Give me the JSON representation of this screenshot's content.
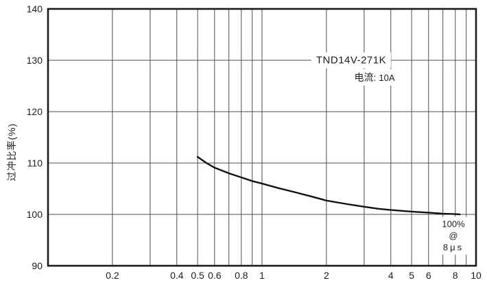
{
  "chart_data": {
    "type": "line",
    "title": "",
    "xlabel": "",
    "ylabel": "过冲比率(%)",
    "x_scale": "log",
    "xlim": [
      0.1,
      10
    ],
    "ylim": [
      90,
      140
    ],
    "grid": true,
    "x_gridlines": [
      0.2,
      0.3,
      0.4,
      0.5,
      0.6,
      0.7,
      0.8,
      0.9,
      1,
      2,
      3,
      4,
      5,
      6,
      7,
      8,
      9
    ],
    "y_gridlines": [
      100,
      110,
      120,
      130
    ],
    "x_ticks": [
      {
        "v": 0.2,
        "label": "0.2"
      },
      {
        "v": 0.4,
        "label": "0.4"
      },
      {
        "v": 0.5,
        "label": "0.5"
      },
      {
        "v": 0.6,
        "label": "0.6"
      },
      {
        "v": 0.8,
        "label": "0.8"
      },
      {
        "v": 1,
        "label": "1"
      },
      {
        "v": 2,
        "label": "2"
      },
      {
        "v": 4,
        "label": "4"
      },
      {
        "v": 5,
        "label": "5"
      },
      {
        "v": 6,
        "label": "6"
      },
      {
        "v": 8,
        "label": "8"
      },
      {
        "v": 10,
        "label": "10"
      }
    ],
    "y_ticks": [
      {
        "v": 90,
        "label": "90"
      },
      {
        "v": 100,
        "label": "100"
      },
      {
        "v": 110,
        "label": "110"
      },
      {
        "v": 120,
        "label": "120"
      },
      {
        "v": 130,
        "label": "130"
      },
      {
        "v": 140,
        "label": "140"
      }
    ],
    "series": [
      {
        "name": "TND14V-271K 过冲比率",
        "points": [
          [
            0.5,
            111.2
          ],
          [
            0.55,
            110.0
          ],
          [
            0.6,
            109.1
          ],
          [
            0.7,
            108.0
          ],
          [
            0.8,
            107.2
          ],
          [
            0.9,
            106.5
          ],
          [
            1.0,
            106.0
          ],
          [
            1.2,
            105.1
          ],
          [
            1.4,
            104.4
          ],
          [
            1.7,
            103.5
          ],
          [
            2.0,
            102.7
          ],
          [
            2.5,
            102.0
          ],
          [
            3.0,
            101.5
          ],
          [
            3.5,
            101.1
          ],
          [
            4.0,
            100.85
          ],
          [
            5.0,
            100.55
          ],
          [
            6.0,
            100.35
          ],
          [
            7.0,
            100.15
          ],
          [
            8.0,
            100.05
          ],
          [
            8.4,
            100.0
          ]
        ]
      }
    ],
    "annotations": {
      "model": "TND14V-271K",
      "current_label": "电流:",
      "current_value": "10A",
      "note": [
        "100%",
        "@",
        "8μs"
      ]
    },
    "colors": {
      "curve": "#111111",
      "grid": "#4d4d4d",
      "frame": "#1a1a1a",
      "text": "#1c1c1c",
      "background": "#ffffff"
    }
  }
}
